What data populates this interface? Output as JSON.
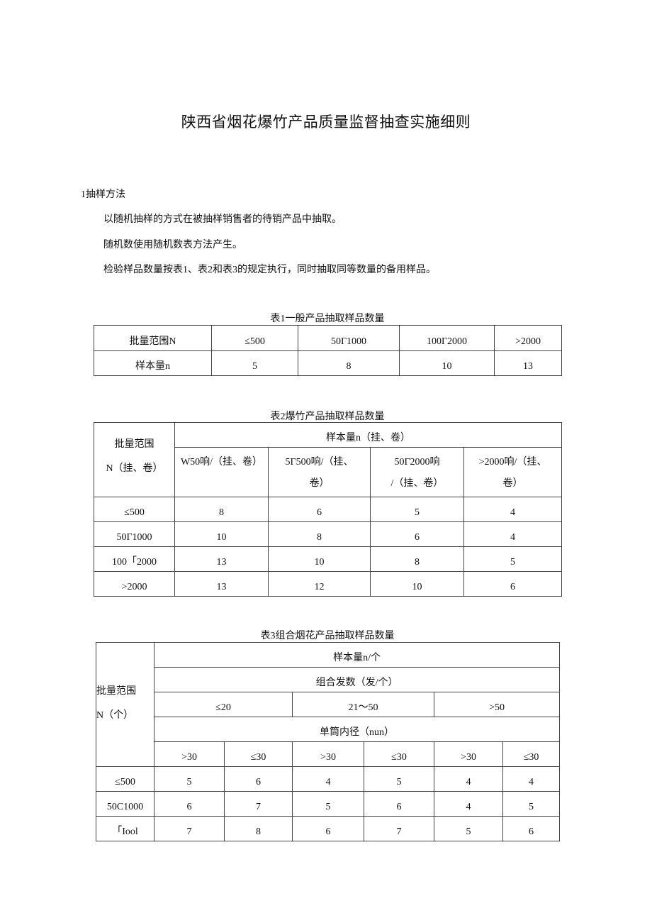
{
  "title": "陕西省烟花爆竹产品质量监督抽查实施细则",
  "section1": {
    "heading": "1抽样方法",
    "paragraphs": [
      "以随机抽样的方式在被抽样销售者的待销产品中抽取。",
      "随机数使用随机数表方法产生。",
      "检验样品数量按表1、表2和表3的规定执行，同时抽取同等数量的备用样品。"
    ]
  },
  "table1": {
    "caption": "表1一般产品抽取样品数量",
    "rows": [
      [
        "批量范围N",
        "≤500",
        "50Γ1000",
        "100Γ2000",
        ">2000"
      ],
      [
        "样本量n",
        "5",
        "8",
        "10",
        "13"
      ]
    ]
  },
  "table2": {
    "caption": "表2爆竹产品抽取样品数量",
    "corner": "批量范围\nN（挂、卷）",
    "group": "样本量n（挂、卷）",
    "cols": [
      "W50响/（挂、卷）",
      "5Γ500响/（挂、\n卷）",
      "50Γ2000响\n/（挂、卷）",
      ">2000响/（挂、\n卷）"
    ],
    "rows": [
      [
        "≤500",
        "8",
        "6",
        "5",
        "4"
      ],
      [
        "50Γ1000",
        "10",
        "8",
        "6",
        "4"
      ],
      [
        "100「2000",
        "13",
        "10",
        "8",
        "5"
      ],
      [
        ">2000",
        "13",
        "12",
        "10",
        "6"
      ]
    ]
  },
  "table3": {
    "caption": "表3组合烟花产品抽取样品数量",
    "corner": "批量范围\nN（个）",
    "group1": "样本量n/个",
    "group2": "组合发数（发/个）",
    "counts": [
      "≤20",
      "21～50",
      ">50"
    ],
    "group3": "单筒内径（nun）",
    "diam": [
      ">30",
      "≤30",
      ">30",
      "≤30",
      ">30",
      "≤30"
    ],
    "rows": [
      [
        "≤500",
        "5",
        "6",
        "4",
        "5",
        "4",
        "4"
      ],
      [
        "50C1000",
        "6",
        "7",
        "5",
        "6",
        "4",
        "5"
      ],
      [
        "「Iool",
        "7",
        "8",
        "6",
        "7",
        "5",
        "6"
      ]
    ]
  }
}
